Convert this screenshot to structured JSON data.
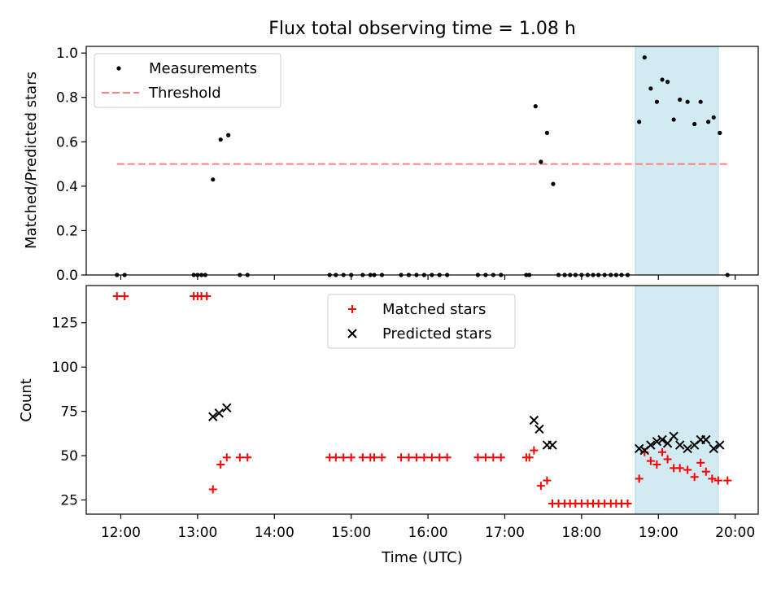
{
  "chart_data": [
    {
      "type": "scatter",
      "title": "Flux total observing time = 1.08 h",
      "xlabel": "",
      "ylabel": "Matched/Predicted stars",
      "xlim": [
        11.55,
        20.3
      ],
      "ylim": [
        0,
        1.03
      ],
      "x_ticks": [
        "12:00",
        "13:00",
        "14:00",
        "15:00",
        "16:00",
        "17:00",
        "18:00",
        "19:00",
        "20:00"
      ],
      "y_ticks": [
        "0.0",
        "0.2",
        "0.4",
        "0.6",
        "0.8",
        "1.0"
      ],
      "legend_position": "top-left",
      "highlight_span": {
        "x_start": 18.7,
        "x_end": 19.78,
        "color": "#add8e6"
      },
      "threshold": {
        "name": "Threshold",
        "y": 0.5,
        "x_start": 11.95,
        "x_end": 19.9,
        "color": "#ff7f7f"
      },
      "series": [
        {
          "name": "Measurements",
          "color": "#000000",
          "points": [
            [
              11.95,
              0
            ],
            [
              12.05,
              0
            ],
            [
              12.95,
              0
            ],
            [
              13.0,
              0
            ],
            [
              13.05,
              0
            ],
            [
              13.1,
              0
            ],
            [
              13.2,
              0.43
            ],
            [
              13.3,
              0.61
            ],
            [
              13.4,
              0.63
            ],
            [
              13.55,
              0
            ],
            [
              13.65,
              0
            ],
            [
              14.72,
              0
            ],
            [
              14.8,
              0
            ],
            [
              14.9,
              0
            ],
            [
              15.0,
              0
            ],
            [
              15.15,
              0
            ],
            [
              15.25,
              0
            ],
            [
              15.3,
              0
            ],
            [
              15.4,
              0
            ],
            [
              15.65,
              0
            ],
            [
              15.75,
              0
            ],
            [
              15.85,
              0
            ],
            [
              15.95,
              0
            ],
            [
              16.05,
              0
            ],
            [
              16.15,
              0
            ],
            [
              16.25,
              0
            ],
            [
              16.65,
              0
            ],
            [
              16.75,
              0
            ],
            [
              16.85,
              0
            ],
            [
              16.95,
              0
            ],
            [
              17.28,
              0
            ],
            [
              17.32,
              0
            ],
            [
              17.4,
              0.76
            ],
            [
              17.47,
              0.51
            ],
            [
              17.55,
              0.64
            ],
            [
              17.63,
              0.41
            ],
            [
              17.7,
              0
            ],
            [
              17.78,
              0
            ],
            [
              17.85,
              0
            ],
            [
              17.92,
              0
            ],
            [
              18.0,
              0
            ],
            [
              18.08,
              0
            ],
            [
              18.15,
              0
            ],
            [
              18.22,
              0
            ],
            [
              18.3,
              0
            ],
            [
              18.38,
              0
            ],
            [
              18.45,
              0
            ],
            [
              18.52,
              0
            ],
            [
              18.6,
              0
            ],
            [
              18.75,
              0.69
            ],
            [
              18.82,
              0.98
            ],
            [
              18.9,
              0.84
            ],
            [
              18.98,
              0.78
            ],
            [
              19.05,
              0.88
            ],
            [
              19.12,
              0.87
            ],
            [
              19.2,
              0.7
            ],
            [
              19.28,
              0.79
            ],
            [
              19.38,
              0.78
            ],
            [
              19.47,
              0.68
            ],
            [
              19.55,
              0.78
            ],
            [
              19.65,
              0.69
            ],
            [
              19.72,
              0.71
            ],
            [
              19.8,
              0.64
            ],
            [
              19.9,
              0
            ]
          ]
        }
      ]
    },
    {
      "type": "scatter",
      "title": "",
      "xlabel": "Time (UTC)",
      "ylabel": "Count",
      "xlim": [
        11.55,
        20.3
      ],
      "ylim": [
        17,
        146
      ],
      "x_ticks": [
        "12:00",
        "13:00",
        "14:00",
        "15:00",
        "16:00",
        "17:00",
        "18:00",
        "19:00",
        "20:00"
      ],
      "y_ticks": [
        "25",
        "50",
        "75",
        "100",
        "125"
      ],
      "legend_position": "upper-center",
      "highlight_span": {
        "x_start": 18.7,
        "x_end": 19.78,
        "color": "#add8e6"
      },
      "series": [
        {
          "name": "Matched stars",
          "marker": "plus",
          "color": "#ff0000",
          "points": [
            [
              11.95,
              140
            ],
            [
              12.05,
              140
            ],
            [
              12.95,
              140
            ],
            [
              13.0,
              140
            ],
            [
              13.05,
              140
            ],
            [
              13.12,
              140
            ],
            [
              13.2,
              31
            ],
            [
              13.3,
              45
            ],
            [
              13.38,
              49
            ],
            [
              13.55,
              49
            ],
            [
              13.65,
              49
            ],
            [
              14.72,
              49
            ],
            [
              14.8,
              49
            ],
            [
              14.9,
              49
            ],
            [
              15.0,
              49
            ],
            [
              15.15,
              49
            ],
            [
              15.25,
              49
            ],
            [
              15.3,
              49
            ],
            [
              15.4,
              49
            ],
            [
              15.65,
              49
            ],
            [
              15.75,
              49
            ],
            [
              15.85,
              49
            ],
            [
              15.95,
              49
            ],
            [
              16.05,
              49
            ],
            [
              16.15,
              49
            ],
            [
              16.25,
              49
            ],
            [
              16.65,
              49
            ],
            [
              16.75,
              49
            ],
            [
              16.85,
              49
            ],
            [
              16.95,
              49
            ],
            [
              17.28,
              49
            ],
            [
              17.32,
              49
            ],
            [
              17.38,
              53
            ],
            [
              17.47,
              33
            ],
            [
              17.55,
              36
            ],
            [
              17.62,
              23
            ],
            [
              17.7,
              23
            ],
            [
              17.78,
              23
            ],
            [
              17.85,
              23
            ],
            [
              17.92,
              23
            ],
            [
              18.0,
              23
            ],
            [
              18.08,
              23
            ],
            [
              18.15,
              23
            ],
            [
              18.22,
              23
            ],
            [
              18.3,
              23
            ],
            [
              18.38,
              23
            ],
            [
              18.45,
              23
            ],
            [
              18.52,
              23
            ],
            [
              18.6,
              23
            ],
            [
              18.75,
              37
            ],
            [
              18.82,
              52
            ],
            [
              18.9,
              47
            ],
            [
              18.98,
              45
            ],
            [
              19.05,
              52
            ],
            [
              19.12,
              48
            ],
            [
              19.2,
              43
            ],
            [
              19.28,
              43
            ],
            [
              19.38,
              42
            ],
            [
              19.47,
              38
            ],
            [
              19.55,
              46
            ],
            [
              19.62,
              41
            ],
            [
              19.7,
              37
            ],
            [
              19.78,
              36
            ],
            [
              19.9,
              36
            ]
          ]
        },
        {
          "name": "Predicted stars",
          "marker": "x",
          "color": "#000000",
          "points": [
            [
              13.2,
              72
            ],
            [
              13.28,
              74
            ],
            [
              13.38,
              77
            ],
            [
              17.38,
              70
            ],
            [
              17.45,
              65
            ],
            [
              17.55,
              56
            ],
            [
              17.62,
              56
            ],
            [
              18.75,
              54
            ],
            [
              18.82,
              53
            ],
            [
              18.9,
              56
            ],
            [
              18.98,
              58
            ],
            [
              19.05,
              59
            ],
            [
              19.12,
              57
            ],
            [
              19.2,
              61
            ],
            [
              19.28,
              56
            ],
            [
              19.38,
              54
            ],
            [
              19.47,
              56
            ],
            [
              19.55,
              59
            ],
            [
              19.62,
              59
            ],
            [
              19.72,
              54
            ],
            [
              19.8,
              56
            ]
          ]
        }
      ]
    }
  ]
}
